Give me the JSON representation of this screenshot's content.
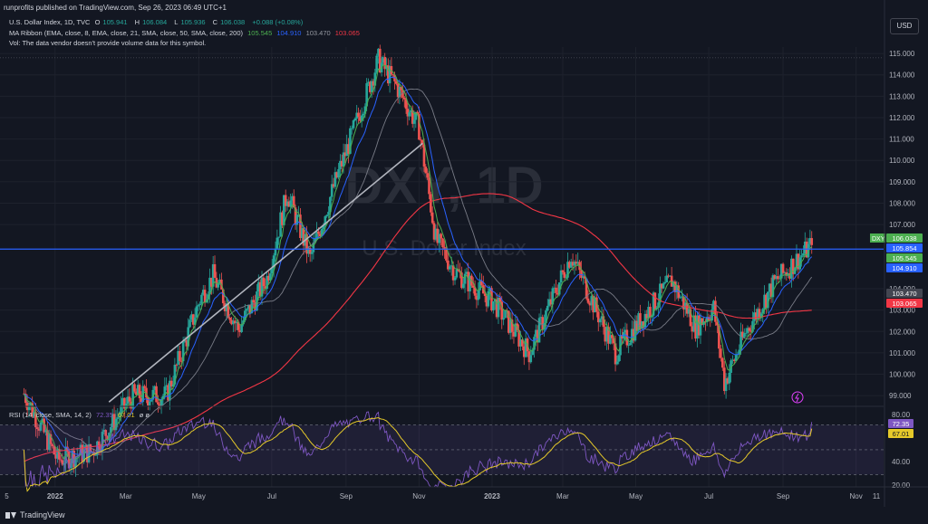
{
  "header": {
    "published": "runprofits published on TradingView.com, Sep 26, 2023 06:49 UTC+1",
    "currency_button": "USD"
  },
  "legend": {
    "symbol": "U.S. Dollar Index, 1D, TVC",
    "ohlc": [
      {
        "label": "O",
        "value": "105.941"
      },
      {
        "label": "H",
        "value": "106.084"
      },
      {
        "label": "L",
        "value": "105.936"
      },
      {
        "label": "C",
        "value": "106.038"
      }
    ],
    "change": "+0.088 (+0.08%)",
    "ma_ribbon_label": "MA Ribbon (EMA, close, 8, EMA, close, 21, SMA, close, 50, SMA, close, 200)",
    "ma_values": [
      "105.545",
      "104.910",
      "103.470",
      "103.065"
    ],
    "vol_note": "Vol: The data vendor doesn't provide volume data for this symbol.",
    "rsi_label": "RSI (14, close, SMA, 14, 2)",
    "rsi_values": [
      "72.35",
      "67.01"
    ],
    "rsi_extra": "ø ø"
  },
  "watermark": {
    "big": "DXY, 1D",
    "small": "U.S. Dollar Index"
  },
  "colors": {
    "background": "#131722",
    "up": "#26a69a",
    "down": "#ef5350",
    "ema8": "#4caf50",
    "ema21": "#2962ff",
    "sma50": "#787b86",
    "sma200": "#f23645",
    "hline": "#2962ff",
    "rsi": "#7e57c2",
    "rsi_ma": "#e5c92a"
  },
  "price_axis": {
    "ticks": [
      "115.000",
      "114.000",
      "113.000",
      "112.000",
      "111.000",
      "110.000",
      "109.000",
      "108.000",
      "107.000",
      "104.000",
      "103.000",
      "102.000",
      "101.000",
      "100.000",
      "99.000"
    ],
    "tags": [
      {
        "label": "DXY",
        "value": "106.038",
        "color": "#4caf50"
      },
      {
        "value": "105.854",
        "color": "#2962ff"
      },
      {
        "value": "105.545",
        "color": "#4caf50"
      },
      {
        "value": "104.910",
        "color": "#2962ff"
      },
      {
        "value": "103.470",
        "color": "#434651"
      },
      {
        "value": "103.065",
        "color": "#f23645"
      }
    ]
  },
  "rsi_axis": {
    "ticks": [
      "80.00",
      "40.00",
      "20.00"
    ],
    "tags": [
      {
        "value": "72.35",
        "color": "#7e57c2"
      },
      {
        "value": "67.01",
        "color": "#e5c92a"
      }
    ]
  },
  "time_axis": [
    "5",
    "2022",
    "Mar",
    "May",
    "Jul",
    "Sep",
    "Nov",
    "2023",
    "Mar",
    "May",
    "Jul",
    "Sep",
    "Nov",
    "11"
  ],
  "footer": {
    "brand": "TradingView"
  },
  "chart_data": {
    "type": "candlestick",
    "title": "U.S. Dollar Index, 1D, TVC",
    "x_range": [
      "2021-11",
      "2023-11"
    ],
    "ylim": [
      98.5,
      115.3
    ],
    "hline": 105.854,
    "price_path": [
      [
        "2021-12-06",
        99.1
      ],
      [
        "2022-01-03",
        96.0
      ],
      [
        "2022-02-01",
        96.4
      ],
      [
        "2022-03-07",
        99.0
      ],
      [
        "2022-04-04",
        99.0
      ],
      [
        "2022-05-02",
        103.5
      ],
      [
        "2022-05-13",
        104.6
      ],
      [
        "2022-06-03",
        102.1
      ],
      [
        "2022-06-27",
        104.5
      ],
      [
        "2022-07-14",
        108.5
      ],
      [
        "2022-08-02",
        105.4
      ],
      [
        "2022-08-23",
        109.0
      ],
      [
        "2022-09-28",
        114.7
      ],
      [
        "2022-10-13",
        113.5
      ],
      [
        "2022-11-01",
        111.5
      ],
      [
        "2022-11-15",
        106.3
      ],
      [
        "2022-12-01",
        104.8
      ],
      [
        "2023-01-02",
        103.4
      ],
      [
        "2023-02-01",
        101.0
      ],
      [
        "2023-03-08",
        105.6
      ],
      [
        "2023-04-14",
        101.0
      ],
      [
        "2023-05-31",
        104.4
      ],
      [
        "2023-06-20",
        102.2
      ],
      [
        "2023-07-05",
        103.1
      ],
      [
        "2023-07-14",
        99.6
      ],
      [
        "2023-08-01",
        102.0
      ],
      [
        "2023-08-25",
        104.3
      ],
      [
        "2023-09-25",
        106.04
      ]
    ],
    "trendline": [
      [
        "2022-02-15",
        98.7
      ],
      [
        "2022-11-04",
        110.8
      ]
    ],
    "ma_ribbon": [
      {
        "name": "EMA 8",
        "value": 105.545
      },
      {
        "name": "EMA 21",
        "value": 104.91
      },
      {
        "name": "SMA 50",
        "value": 103.47
      },
      {
        "name": "SMA 200",
        "value": 103.065
      }
    ],
    "rsi": {
      "ylim": [
        20,
        85
      ],
      "bands": [
        30,
        50,
        70
      ],
      "last": 72.35,
      "ma_last": 67.01
    }
  }
}
